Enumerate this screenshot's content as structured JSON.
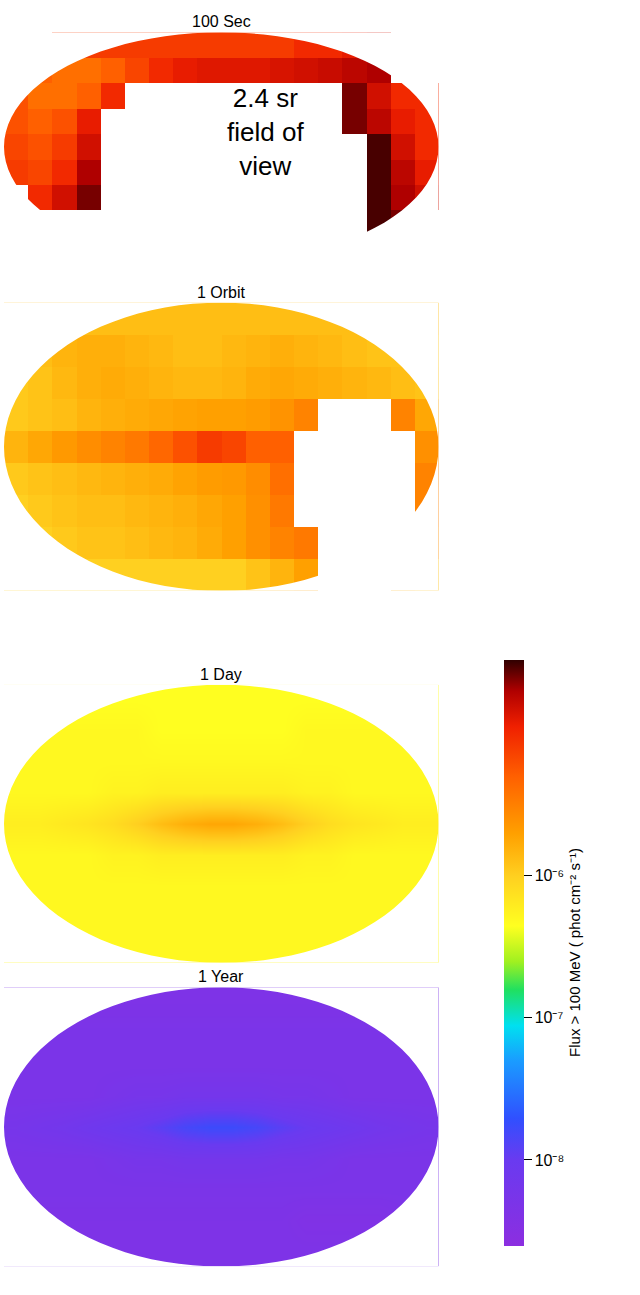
{
  "chart_data": [
    {
      "type": "heatmap",
      "title": "100 Sec",
      "log": true,
      "tick_labels": false,
      "annotations": [
        "2.4 sr field of view"
      ],
      "xlim": [
        -180,
        180
      ],
      "ylim": [
        -90,
        90
      ],
      "x": [
        -170,
        -150,
        -130,
        -110,
        -90,
        -70,
        -50,
        -30,
        -10,
        10,
        30,
        50,
        70,
        90,
        110,
        130,
        150,
        170
      ],
      "y": [
        80,
        60,
        40,
        20,
        0,
        -20,
        -40,
        -60,
        -80
      ],
      "values": [
        [
          null,
          null,
          8e-06,
          8e-06,
          8e-06,
          8e-06,
          8e-06,
          8e-06,
          8e-06,
          8e-06,
          8e-06,
          8e-06,
          1e-05,
          1e-05,
          1.2e-05,
          1.5e-05,
          null,
          null
        ],
        [
          6e-06,
          5e-06,
          4e-06,
          4e-06,
          5e-06,
          7e-06,
          1e-05,
          1.2e-05,
          1.3e-05,
          1.3e-05,
          1.3e-05,
          1.4e-05,
          1.5e-05,
          1.6e-05,
          1.8e-05,
          2e-05,
          null,
          null
        ],
        [
          6e-06,
          4e-06,
          4e-06,
          5e-06,
          1e-05,
          null,
          null,
          null,
          null,
          null,
          null,
          null,
          null,
          null,
          2.5e-05,
          1.5e-05,
          1e-05,
          1e-05
        ],
        [
          6e-06,
          5e-06,
          6e-06,
          1.2e-05,
          null,
          null,
          null,
          null,
          null,
          null,
          null,
          null,
          null,
          null,
          2.5e-05,
          1.8e-05,
          1.2e-05,
          1e-05
        ],
        [
          7e-06,
          6e-06,
          8e-06,
          1.5e-05,
          null,
          null,
          null,
          null,
          null,
          null,
          null,
          null,
          null,
          null,
          null,
          3e-05,
          1.5e-05,
          1e-05
        ],
        [
          8e-06,
          7e-06,
          1e-05,
          2e-05,
          null,
          null,
          null,
          null,
          null,
          null,
          null,
          null,
          null,
          null,
          null,
          3e-05,
          1.8e-05,
          1.2e-05
        ],
        [
          null,
          1e-05,
          1.5e-05,
          2.5e-05,
          null,
          null,
          null,
          null,
          null,
          null,
          null,
          null,
          null,
          null,
          null,
          3e-05,
          2e-05,
          1.5e-05
        ],
        [
          null,
          null,
          null,
          null,
          null,
          null,
          null,
          null,
          null,
          null,
          null,
          null,
          null,
          null,
          null,
          3e-05,
          2.5e-05,
          null
        ],
        [
          null,
          null,
          null,
          null,
          null,
          null,
          null,
          null,
          null,
          null,
          null,
          null,
          null,
          null,
          null,
          null,
          null,
          null
        ]
      ]
    },
    {
      "type": "heatmap",
      "title": "1 Orbit",
      "log": true,
      "tick_labels": false,
      "xlim": [
        -180,
        180
      ],
      "ylim": [
        -90,
        90
      ],
      "x": [
        -170,
        -150,
        -130,
        -110,
        -90,
        -70,
        -50,
        -30,
        -10,
        10,
        30,
        50,
        70,
        90,
        110,
        130,
        150,
        170
      ],
      "y": [
        80,
        60,
        40,
        20,
        0,
        -20,
        -40,
        -60,
        -80
      ],
      "values": [
        [
          1.3e-06,
          1.3e-06,
          1.3e-06,
          1.3e-06,
          1.3e-06,
          1.3e-06,
          1.3e-06,
          1.3e-06,
          1.3e-06,
          1.3e-06,
          1.3e-06,
          1.3e-06,
          1.3e-06,
          1.3e-06,
          1.3e-06,
          1.3e-06,
          1.3e-06,
          1.3e-06
        ],
        [
          1.2e-06,
          1.3e-06,
          1.5e-06,
          1.6e-06,
          1.6e-06,
          1.5e-06,
          1.4e-06,
          1.3e-06,
          1.3e-06,
          1.4e-06,
          1.5e-06,
          1.6e-06,
          1.5e-06,
          1.4e-06,
          1.3e-06,
          1.2e-06,
          1.2e-06,
          1.1e-06
        ],
        [
          1.1e-06,
          1.2e-06,
          1.4e-06,
          1.6e-06,
          1.7e-06,
          1.6e-06,
          1.5e-06,
          1.4e-06,
          1.4e-06,
          1.5e-06,
          1.7e-06,
          1.8e-06,
          1.7e-06,
          1.6e-06,
          1.5e-06,
          1.4e-06,
          1.3e-06,
          1.2e-06
        ],
        [
          1.1e-06,
          1.2e-06,
          1.3e-06,
          1.5e-06,
          1.6e-06,
          1.7e-06,
          1.8e-06,
          1.9e-06,
          2e-06,
          2e-06,
          2.1e-06,
          2.4e-06,
          3e-06,
          null,
          null,
          null,
          3e-06,
          1.8e-06
        ],
        [
          1.5e-06,
          1.8e-06,
          2.2e-06,
          2.6e-06,
          3e-06,
          3.5e-06,
          4.5e-06,
          6e-06,
          8e-06,
          7e-06,
          5e-06,
          5e-06,
          null,
          null,
          null,
          null,
          null,
          2.5e-06
        ],
        [
          1.1e-06,
          1.2e-06,
          1.3e-06,
          1.4e-06,
          1.5e-06,
          1.6e-06,
          1.7e-06,
          1.9e-06,
          2.1e-06,
          2.2e-06,
          2.6e-06,
          4e-06,
          null,
          null,
          null,
          null,
          null,
          3e-06
        ],
        [
          1e-06,
          1.1e-06,
          1.2e-06,
          1.3e-06,
          1.3e-06,
          1.4e-06,
          1.5e-06,
          1.6e-06,
          1.8e-06,
          2e-06,
          2.5e-06,
          3.5e-06,
          null,
          null,
          null,
          null,
          null,
          3e-06
        ],
        [
          1e-06,
          1e-06,
          1.1e-06,
          1.2e-06,
          1.2e-06,
          1.3e-06,
          1.4e-06,
          1.5e-06,
          1.7e-06,
          2e-06,
          2.5e-06,
          3e-06,
          3.5e-06,
          null,
          null,
          null,
          null,
          2.5e-06
        ],
        [
          1e-06,
          1e-06,
          1e-06,
          1e-06,
          1e-06,
          1e-06,
          1e-06,
          1e-06,
          1e-06,
          1e-06,
          1.2e-06,
          1.5e-06,
          2e-06,
          null,
          null,
          null,
          1.5e-06,
          1.2e-06
        ]
      ]
    },
    {
      "type": "heatmap",
      "title": "1 Day",
      "log": true,
      "tick_labels": false,
      "xlim": [
        -180,
        180
      ],
      "ylim": [
        -90,
        90
      ],
      "x": [
        -170,
        -150,
        -130,
        -110,
        -90,
        -70,
        -50,
        -30,
        -10,
        10,
        30,
        50,
        70,
        90,
        110,
        130,
        150,
        170
      ],
      "y": [
        80,
        60,
        40,
        20,
        0,
        -20,
        -40,
        -60,
        -80
      ],
      "values": [
        [
          4.5e-07,
          4.5e-07,
          4.5e-07,
          4.5e-07,
          4.5e-07,
          4.5e-07,
          4.5e-07,
          4.5e-07,
          4.5e-07,
          4.5e-07,
          4.5e-07,
          4.5e-07,
          4.5e-07,
          4.5e-07,
          4.5e-07,
          4.5e-07,
          4.5e-07,
          4.5e-07
        ],
        [
          5e-07,
          5e-07,
          5e-07,
          5e-07,
          5e-07,
          5e-07,
          4.5e-07,
          4.5e-07,
          4.5e-07,
          4.5e-07,
          4.5e-07,
          4.5e-07,
          5e-07,
          5e-07,
          5e-07,
          5e-07,
          5e-07,
          5e-07
        ],
        [
          5e-07,
          5e-07,
          5e-07,
          5e-07,
          5e-07,
          5e-07,
          5e-07,
          5e-07,
          5e-07,
          5e-07,
          5e-07,
          5e-07,
          5e-07,
          5e-07,
          5e-07,
          5e-07,
          5e-07,
          5e-07
        ],
        [
          5e-07,
          5e-07,
          5e-07,
          5e-07,
          5.5e-07,
          5.5e-07,
          6e-07,
          6e-07,
          6e-07,
          6e-07,
          6e-07,
          6e-07,
          5.5e-07,
          5.5e-07,
          5e-07,
          5e-07,
          5e-07,
          5e-07
        ],
        [
          6e-07,
          6e-07,
          6.5e-07,
          7e-07,
          8e-07,
          1e-06,
          1.3e-06,
          1.6e-06,
          1.8e-06,
          1.8e-06,
          1.6e-06,
          1.3e-06,
          1e-06,
          8e-07,
          7e-07,
          6.5e-07,
          6e-07,
          6e-07
        ],
        [
          5e-07,
          5e-07,
          5e-07,
          5e-07,
          5.5e-07,
          5.5e-07,
          6e-07,
          6e-07,
          6e-07,
          6e-07,
          6e-07,
          6e-07,
          5.5e-07,
          5.5e-07,
          5e-07,
          5e-07,
          5e-07,
          5e-07
        ],
        [
          5e-07,
          5e-07,
          5e-07,
          5e-07,
          5e-07,
          5e-07,
          5e-07,
          5e-07,
          5e-07,
          5e-07,
          5e-07,
          5e-07,
          5e-07,
          5e-07,
          5e-07,
          5e-07,
          5e-07,
          5e-07
        ],
        [
          5e-07,
          5e-07,
          5e-07,
          5e-07,
          5e-07,
          5e-07,
          5e-07,
          5e-07,
          5e-07,
          5e-07,
          5e-07,
          5e-07,
          5e-07,
          5e-07,
          5e-07,
          5e-07,
          5e-07,
          5e-07
        ],
        [
          5e-07,
          5e-07,
          5e-07,
          5e-07,
          5e-07,
          5e-07,
          5e-07,
          5e-07,
          5e-07,
          5e-07,
          5e-07,
          5e-07,
          5e-07,
          5e-07,
          5e-07,
          5e-07,
          5e-07,
          5e-07
        ]
      ]
    },
    {
      "type": "heatmap",
      "title": "1 Year",
      "log": true,
      "tick_labels": false,
      "xlim": [
        -180,
        180
      ],
      "ylim": [
        -90,
        90
      ],
      "x": [
        -170,
        -150,
        -130,
        -110,
        -90,
        -70,
        -50,
        -30,
        -10,
        10,
        30,
        50,
        70,
        90,
        110,
        130,
        150,
        170
      ],
      "y": [
        80,
        60,
        40,
        20,
        0,
        -20,
        -40,
        -60,
        -80
      ],
      "values": [
        [
          4.5e-09,
          4.5e-09,
          4.5e-09,
          4.5e-09,
          4.5e-09,
          4.5e-09,
          4.5e-09,
          4.5e-09,
          4.5e-09,
          4.5e-09,
          4.5e-09,
          4.5e-09,
          4.5e-09,
          4.5e-09,
          4.5e-09,
          4.5e-09,
          4.5e-09,
          4.5e-09
        ],
        [
          5e-09,
          5e-09,
          5e-09,
          5e-09,
          5e-09,
          5e-09,
          5e-09,
          5e-09,
          5e-09,
          5e-09,
          5e-09,
          5e-09,
          5e-09,
          5e-09,
          5e-09,
          5e-09,
          5e-09,
          5e-09
        ],
        [
          5e-09,
          5e-09,
          5e-09,
          5e-09,
          5e-09,
          5e-09,
          5e-09,
          5e-09,
          5e-09,
          5e-09,
          5e-09,
          5e-09,
          5e-09,
          5e-09,
          5e-09,
          5e-09,
          5e-09,
          5e-09
        ],
        [
          5e-09,
          5e-09,
          5e-09,
          5e-09,
          5.5e-09,
          6e-09,
          6e-09,
          6.5e-09,
          6.5e-09,
          6.5e-09,
          6.5e-09,
          6e-09,
          6e-09,
          5.5e-09,
          5e-09,
          5e-09,
          5e-09,
          5e-09
        ],
        [
          6e-09,
          6.5e-09,
          7e-09,
          8e-09,
          9e-09,
          1e-08,
          1.2e-08,
          1.5e-08,
          1.7e-08,
          1.7e-08,
          1.5e-08,
          1.2e-08,
          1e-08,
          9e-09,
          8e-09,
          7e-09,
          6.5e-09,
          6e-09
        ],
        [
          5e-09,
          5e-09,
          5e-09,
          5e-09,
          5.5e-09,
          6e-09,
          6e-09,
          6.5e-09,
          6.5e-09,
          6.5e-09,
          6.5e-09,
          6e-09,
          6e-09,
          5.5e-09,
          5e-09,
          5e-09,
          5e-09,
          5e-09
        ],
        [
          5e-09,
          5e-09,
          5e-09,
          5e-09,
          5e-09,
          5e-09,
          5e-09,
          5e-09,
          5e-09,
          5e-09,
          5e-09,
          5e-09,
          5e-09,
          5e-09,
          5e-09,
          5e-09,
          5e-09,
          5e-09
        ],
        [
          4.5e-09,
          4.5e-09,
          4.5e-09,
          4.5e-09,
          4.5e-09,
          4.5e-09,
          4.5e-09,
          4.5e-09,
          4.5e-09,
          4.5e-09,
          4.5e-09,
          4.5e-09,
          4e-09,
          4e-09,
          4e-09,
          4e-09,
          4.5e-09,
          4.5e-09
        ],
        [
          4.5e-09,
          4.5e-09,
          4.5e-09,
          4.5e-09,
          4.5e-09,
          4.5e-09,
          4.5e-09,
          4.5e-09,
          4.5e-09,
          4.5e-09,
          4.5e-09,
          4.5e-09,
          4.5e-09,
          4.5e-09,
          4.5e-09,
          4.5e-09,
          4.5e-09,
          4.5e-09
        ]
      ]
    }
  ],
  "colorbar": {
    "title": "Flux > 100 MeV ( phot cm⁻² s⁻¹)",
    "log": true,
    "range": [
      2.5e-09,
      3.3e-05
    ],
    "ticks": [
      {
        "value": 1e-06,
        "label": "10⁻⁶"
      },
      {
        "value": 1e-07,
        "label": "10⁻⁷"
      },
      {
        "value": 1e-08,
        "label": "10⁻⁸"
      }
    ]
  }
}
